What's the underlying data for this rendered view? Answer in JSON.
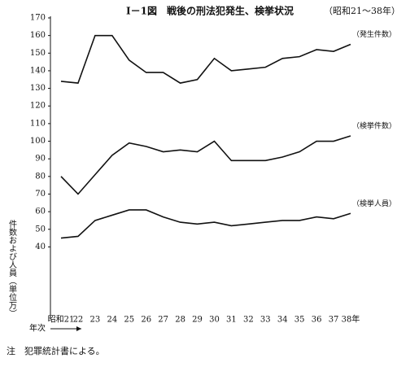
{
  "chart_data": {
    "type": "line",
    "title": "Ⅰ－1図　戦後の刑法犯発生、検挙状況",
    "subtitle": "（昭和21～38年）",
    "y_label": "件数および人員（単位万）",
    "x_label": "年次",
    "note": "注　犯罪統計書による。",
    "categories": [
      "昭和21",
      "22",
      "23",
      "24",
      "25",
      "26",
      "27",
      "28",
      "29",
      "30",
      "31",
      "32",
      "33",
      "34",
      "35",
      "36",
      "37",
      "38年"
    ],
    "series": [
      {
        "name": "（発生件数）",
        "color": "#111111",
        "values": [
          134,
          133,
          160,
          160,
          146,
          139,
          139,
          133,
          135,
          147,
          140,
          141,
          142,
          147,
          148,
          152,
          151,
          155
        ]
      },
      {
        "name": "（検挙件数）",
        "color": "#111111",
        "values": [
          80,
          70,
          81,
          92,
          99,
          97,
          94,
          95,
          94,
          100,
          89,
          89,
          89,
          91,
          94,
          100,
          100,
          103
        ]
      },
      {
        "name": "（検挙人員）",
        "color": "#111111",
        "values": [
          45,
          46,
          55,
          58,
          61,
          61,
          57,
          54,
          53,
          54,
          52,
          53,
          54,
          55,
          55,
          57,
          56,
          59
        ]
      }
    ],
    "ylim": [
      0,
      170
    ],
    "yticks": [
      40,
      50,
      60,
      70,
      80,
      90,
      100,
      110,
      120,
      130,
      140,
      150,
      160,
      170
    ],
    "grid": false
  }
}
